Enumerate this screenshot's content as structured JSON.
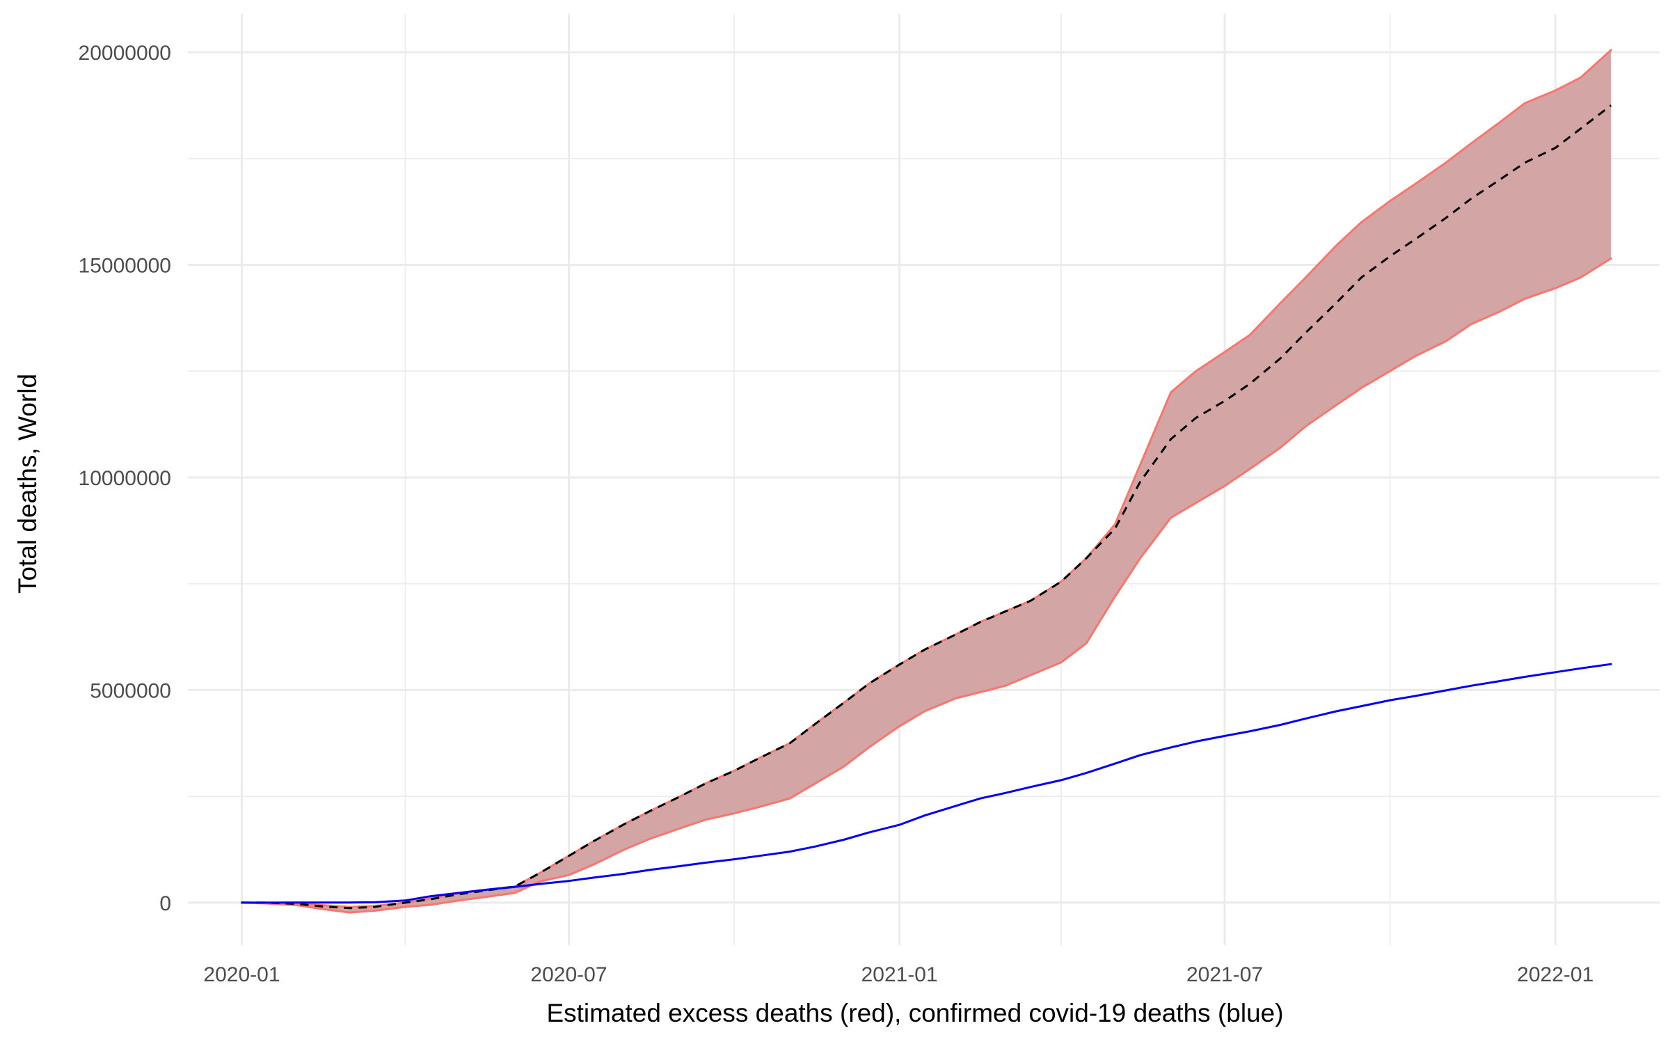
{
  "chart_data": {
    "type": "area",
    "title": "",
    "xlabel": "Estimated excess deaths (red), confirmed covid-19 deaths (blue)",
    "ylabel": "Total deaths, World",
    "x_type": "date",
    "xlim": [
      "2019-12-02",
      "2022-02-28"
    ],
    "ylim": [
      -1000000,
      20900000
    ],
    "x_ticks": [
      {
        "date": "2020-01-01",
        "label": "2020-01"
      },
      {
        "date": "2020-07-01",
        "label": "2020-07"
      },
      {
        "date": "2021-01-01",
        "label": "2021-01"
      },
      {
        "date": "2021-07-01",
        "label": "2021-07"
      },
      {
        "date": "2022-01-01",
        "label": "2022-01"
      }
    ],
    "x_minor_ticks": [
      "2020-04-01",
      "2020-10-01",
      "2021-04-01",
      "2021-10-01"
    ],
    "y_ticks": [
      {
        "value": 0,
        "label": "0"
      },
      {
        "value": 5000000,
        "label": "5000000"
      },
      {
        "value": 10000000,
        "label": "10000000"
      },
      {
        "value": 15000000,
        "label": "15000000"
      },
      {
        "value": 20000000,
        "label": "20000000"
      }
    ],
    "y_minor_ticks": [
      2500000,
      7500000,
      12500000,
      17500000
    ],
    "grid": true,
    "legend": "none",
    "colors": {
      "band_fill": "#d4a5a5",
      "band_edge": "#f8766d",
      "estimate": "#000000",
      "confirmed": "#0000ee",
      "grid": "#ebebeb"
    },
    "series": [
      {
        "type": "line",
        "style": "solid",
        "color": "#f8766d",
        "points": [
          [
            "2020-01-01",
            0
          ],
          [
            "2020-01-15",
            -20000
          ],
          [
            "2020-02-01",
            -60000
          ],
          [
            "2020-02-15",
            -150000
          ],
          [
            "2020-03-01",
            -230000
          ],
          [
            "2020-03-15",
            -190000
          ],
          [
            "2020-04-01",
            -100000
          ],
          [
            "2020-04-15",
            -50000
          ],
          [
            "2020-05-01",
            50000
          ],
          [
            "2020-05-15",
            130000
          ],
          [
            "2020-06-01",
            230000
          ],
          [
            "2020-06-15",
            500000
          ],
          [
            "2020-07-01",
            650000
          ],
          [
            "2020-07-15",
            900000
          ],
          [
            "2020-08-01",
            1250000
          ],
          [
            "2020-08-15",
            1500000
          ],
          [
            "2020-09-01",
            1750000
          ],
          [
            "2020-09-15",
            1950000
          ],
          [
            "2020-10-01",
            2100000
          ],
          [
            "2020-10-15",
            2250000
          ],
          [
            "2020-11-01",
            2450000
          ],
          [
            "2020-11-15",
            2800000
          ],
          [
            "2020-12-01",
            3200000
          ],
          [
            "2020-12-15",
            3650000
          ],
          [
            "2021-01-01",
            4150000
          ],
          [
            "2021-01-15",
            4500000
          ],
          [
            "2021-02-01",
            4800000
          ],
          [
            "2021-02-15",
            4950000
          ],
          [
            "2021-03-01",
            5100000
          ],
          [
            "2021-03-15",
            5350000
          ],
          [
            "2021-04-01",
            5650000
          ],
          [
            "2021-04-15",
            6100000
          ],
          [
            "2021-05-01",
            7200000
          ],
          [
            "2021-05-15",
            8100000
          ],
          [
            "2021-06-01",
            9050000
          ],
          [
            "2021-06-15",
            9400000
          ],
          [
            "2021-07-01",
            9800000
          ],
          [
            "2021-07-15",
            10200000
          ],
          [
            "2021-08-01",
            10700000
          ],
          [
            "2021-08-15",
            11200000
          ],
          [
            "2021-09-01",
            11700000
          ],
          [
            "2021-09-15",
            12100000
          ],
          [
            "2021-10-01",
            12500000
          ],
          [
            "2021-10-15",
            12850000
          ],
          [
            "2021-11-01",
            13200000
          ],
          [
            "2021-11-15",
            13600000
          ],
          [
            "2021-12-01",
            13900000
          ],
          [
            "2021-12-15",
            14200000
          ],
          [
            "2022-01-01",
            14450000
          ],
          [
            "2022-01-15",
            14700000
          ],
          [
            "2022-02-01",
            15150000
          ]
        ]
      },
      {
        "type": "line",
        "style": "solid",
        "color": "#f8766d",
        "points": [
          [
            "2020-01-01",
            0
          ],
          [
            "2020-01-15",
            0
          ],
          [
            "2020-02-01",
            -20000
          ],
          [
            "2020-02-15",
            -60000
          ],
          [
            "2020-03-01",
            -100000
          ],
          [
            "2020-03-15",
            -80000
          ],
          [
            "2020-04-01",
            0
          ],
          [
            "2020-04-15",
            100000
          ],
          [
            "2020-05-01",
            220000
          ],
          [
            "2020-05-15",
            300000
          ],
          [
            "2020-06-01",
            380000
          ],
          [
            "2020-06-15",
            700000
          ],
          [
            "2020-07-01",
            1100000
          ],
          [
            "2020-07-15",
            1450000
          ],
          [
            "2020-08-01",
            1850000
          ],
          [
            "2020-08-15",
            2150000
          ],
          [
            "2020-09-01",
            2500000
          ],
          [
            "2020-09-15",
            2800000
          ],
          [
            "2020-10-01",
            3100000
          ],
          [
            "2020-10-15",
            3400000
          ],
          [
            "2020-11-01",
            3750000
          ],
          [
            "2020-11-15",
            4200000
          ],
          [
            "2020-12-01",
            4700000
          ],
          [
            "2020-12-15",
            5150000
          ],
          [
            "2021-01-01",
            5600000
          ],
          [
            "2021-01-15",
            5950000
          ],
          [
            "2021-02-01",
            6300000
          ],
          [
            "2021-02-15",
            6600000
          ],
          [
            "2021-03-01",
            6850000
          ],
          [
            "2021-03-15",
            7100000
          ],
          [
            "2021-04-01",
            7550000
          ],
          [
            "2021-04-15",
            8100000
          ],
          [
            "2021-05-01",
            8900000
          ],
          [
            "2021-05-15",
            10300000
          ],
          [
            "2021-06-01",
            12000000
          ],
          [
            "2021-06-15",
            12500000
          ],
          [
            "2021-07-01",
            12950000
          ],
          [
            "2021-07-15",
            13350000
          ],
          [
            "2021-08-01",
            14100000
          ],
          [
            "2021-08-15",
            14700000
          ],
          [
            "2021-09-01",
            15450000
          ],
          [
            "2021-09-15",
            16000000
          ],
          [
            "2021-10-01",
            16500000
          ],
          [
            "2021-10-15",
            16900000
          ],
          [
            "2021-11-01",
            17400000
          ],
          [
            "2021-11-15",
            17850000
          ],
          [
            "2021-12-01",
            18350000
          ],
          [
            "2021-12-15",
            18800000
          ],
          [
            "2022-01-01",
            19100000
          ],
          [
            "2022-01-15",
            19400000
          ],
          [
            "2022-02-01",
            20050000
          ]
        ]
      },
      {
        "type": "line",
        "style": "dashed",
        "color": "#000000",
        "points": [
          [
            "2020-01-01",
            0
          ],
          [
            "2020-01-15",
            0
          ],
          [
            "2020-02-01",
            -30000
          ],
          [
            "2020-02-15",
            -90000
          ],
          [
            "2020-03-01",
            -130000
          ],
          [
            "2020-03-15",
            -100000
          ],
          [
            "2020-04-01",
            0
          ],
          [
            "2020-04-15",
            80000
          ],
          [
            "2020-05-01",
            200000
          ],
          [
            "2020-05-15",
            280000
          ],
          [
            "2020-06-01",
            380000
          ],
          [
            "2020-06-15",
            700000
          ],
          [
            "2020-07-01",
            1100000
          ],
          [
            "2020-07-15",
            1450000
          ],
          [
            "2020-08-01",
            1850000
          ],
          [
            "2020-08-15",
            2150000
          ],
          [
            "2020-09-01",
            2500000
          ],
          [
            "2020-09-15",
            2800000
          ],
          [
            "2020-10-01",
            3100000
          ],
          [
            "2020-10-15",
            3400000
          ],
          [
            "2020-11-01",
            3750000
          ],
          [
            "2020-11-15",
            4200000
          ],
          [
            "2020-12-01",
            4700000
          ],
          [
            "2020-12-15",
            5150000
          ],
          [
            "2021-01-01",
            5600000
          ],
          [
            "2021-01-15",
            5950000
          ],
          [
            "2021-02-01",
            6300000
          ],
          [
            "2021-02-15",
            6600000
          ],
          [
            "2021-03-01",
            6850000
          ],
          [
            "2021-03-15",
            7100000
          ],
          [
            "2021-04-01",
            7550000
          ],
          [
            "2021-04-15",
            8100000
          ],
          [
            "2021-05-01",
            8800000
          ],
          [
            "2021-05-15",
            9900000
          ],
          [
            "2021-06-01",
            10900000
          ],
          [
            "2021-06-15",
            11400000
          ],
          [
            "2021-07-01",
            11800000
          ],
          [
            "2021-07-15",
            12200000
          ],
          [
            "2021-08-01",
            12800000
          ],
          [
            "2021-08-15",
            13400000
          ],
          [
            "2021-09-01",
            14100000
          ],
          [
            "2021-09-15",
            14700000
          ],
          [
            "2021-10-01",
            15200000
          ],
          [
            "2021-10-15",
            15600000
          ],
          [
            "2021-11-01",
            16100000
          ],
          [
            "2021-11-15",
            16550000
          ],
          [
            "2021-12-01",
            17000000
          ],
          [
            "2021-12-15",
            17400000
          ],
          [
            "2022-01-01",
            17750000
          ],
          [
            "2022-01-15",
            18200000
          ],
          [
            "2022-02-01",
            18750000
          ]
        ]
      },
      {
        "type": "line",
        "style": "solid",
        "color": "#0000ee",
        "points": [
          [
            "2020-01-01",
            0
          ],
          [
            "2020-02-01",
            1000
          ],
          [
            "2020-03-01",
            3000
          ],
          [
            "2020-03-15",
            8000
          ],
          [
            "2020-04-01",
            50000
          ],
          [
            "2020-04-15",
            150000
          ],
          [
            "2020-05-01",
            230000
          ],
          [
            "2020-05-15",
            300000
          ],
          [
            "2020-06-01",
            370000
          ],
          [
            "2020-06-15",
            440000
          ],
          [
            "2020-07-01",
            510000
          ],
          [
            "2020-07-15",
            590000
          ],
          [
            "2020-08-01",
            680000
          ],
          [
            "2020-08-15",
            770000
          ],
          [
            "2020-09-01",
            860000
          ],
          [
            "2020-09-15",
            940000
          ],
          [
            "2020-10-01",
            1020000
          ],
          [
            "2020-10-15",
            1100000
          ],
          [
            "2020-11-01",
            1200000
          ],
          [
            "2020-11-15",
            1320000
          ],
          [
            "2020-12-01",
            1480000
          ],
          [
            "2020-12-15",
            1650000
          ],
          [
            "2021-01-01",
            1830000
          ],
          [
            "2021-01-15",
            2050000
          ],
          [
            "2021-02-01",
            2270000
          ],
          [
            "2021-02-15",
            2450000
          ],
          [
            "2021-03-01",
            2580000
          ],
          [
            "2021-03-15",
            2720000
          ],
          [
            "2021-04-01",
            2880000
          ],
          [
            "2021-04-15",
            3050000
          ],
          [
            "2021-05-01",
            3270000
          ],
          [
            "2021-05-15",
            3470000
          ],
          [
            "2021-06-01",
            3650000
          ],
          [
            "2021-06-15",
            3790000
          ],
          [
            "2021-07-01",
            3920000
          ],
          [
            "2021-07-15",
            4030000
          ],
          [
            "2021-08-01",
            4180000
          ],
          [
            "2021-08-15",
            4330000
          ],
          [
            "2021-09-01",
            4500000
          ],
          [
            "2021-09-15",
            4620000
          ],
          [
            "2021-10-01",
            4760000
          ],
          [
            "2021-10-15",
            4860000
          ],
          [
            "2021-11-01",
            4990000
          ],
          [
            "2021-11-15",
            5100000
          ],
          [
            "2021-12-01",
            5210000
          ],
          [
            "2021-12-15",
            5310000
          ],
          [
            "2022-01-01",
            5420000
          ],
          [
            "2022-01-15",
            5510000
          ],
          [
            "2022-02-01",
            5610000
          ]
        ]
      }
    ]
  }
}
